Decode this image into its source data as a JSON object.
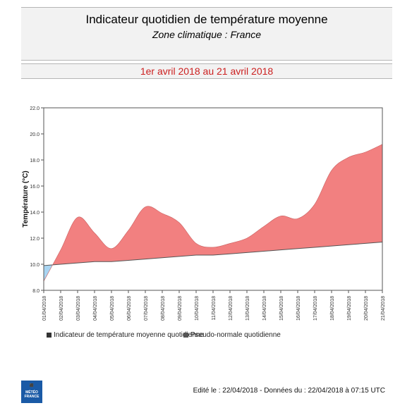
{
  "header": {
    "title": "Indicateur quotidien de température moyenne",
    "subtitle": "Zone climatique : France",
    "period": "1er avril 2018 au 21 avril 2018",
    "period_color": "#cc2020"
  },
  "chart_data": {
    "type": "area",
    "ylabel": "Température (°C)",
    "xlabel": "",
    "ylim": [
      8.0,
      22.0
    ],
    "y_ticks": [
      "8.0",
      "10.0",
      "12.0",
      "14.0",
      "16.0",
      "18.0",
      "20.0",
      "22.0"
    ],
    "categories": [
      "01/04/2018",
      "02/04/2018",
      "03/04/2018",
      "04/04/2018",
      "05/04/2018",
      "06/04/2018",
      "07/04/2018",
      "08/04/2018",
      "09/04/2018",
      "10/04/2018",
      "11/04/2018",
      "12/04/2018",
      "13/04/2018",
      "14/04/2018",
      "15/04/2018",
      "16/04/2018",
      "17/04/2018",
      "18/04/2018",
      "19/04/2018",
      "20/04/2018",
      "21/04/2018"
    ],
    "series": [
      {
        "name": "Indicateur de température moyenne quotidienne",
        "values": [
          8.7,
          11.1,
          13.6,
          12.4,
          11.2,
          12.6,
          14.4,
          13.9,
          13.2,
          11.6,
          11.3,
          11.6,
          12.0,
          12.9,
          13.7,
          13.5,
          14.6,
          17.2,
          18.2,
          18.6,
          19.2
        ],
        "color": "#333333"
      },
      {
        "name": "Pseudo-normale quotidienne",
        "values": [
          9.9,
          10.0,
          10.1,
          10.2,
          10.2,
          10.3,
          10.4,
          10.5,
          10.6,
          10.7,
          10.7,
          10.8,
          10.9,
          11.0,
          11.1,
          11.2,
          11.3,
          11.4,
          11.5,
          11.6,
          11.7
        ],
        "color": "#555555"
      }
    ],
    "fill_above_color": "#f28080",
    "fill_below_color": "#a9d5f2",
    "grid": false,
    "legend_placement": "bottom"
  },
  "footer": {
    "text": "Edité le : 22/04/2018 - Données du : 22/04/2018 à 07:15 UTC",
    "logo_text": "MÉTÉO FRANCE"
  }
}
